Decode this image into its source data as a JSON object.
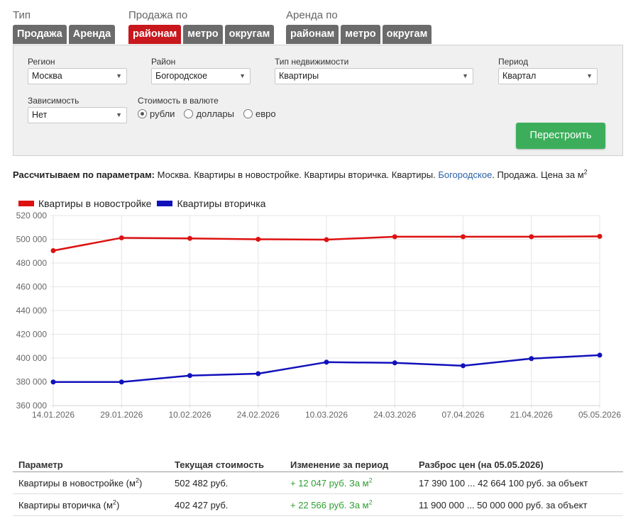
{
  "tabs": {
    "type_label": "Тип",
    "type_items": [
      "Продажа",
      "Аренда"
    ],
    "sale_label": "Продажа по",
    "sale_items": [
      "районам",
      "метро",
      "округам"
    ],
    "rent_label": "Аренда по",
    "rent_items": [
      "районам",
      "метро",
      "округам"
    ]
  },
  "filters": {
    "region_label": "Регион",
    "region_value": "Москва",
    "district_label": "Район",
    "district_value": "Богородское",
    "property_label": "Тип недвижимости",
    "property_value": "Квартиры",
    "period_label": "Период",
    "period_value": "Квартал",
    "dependency_label": "Зависимость",
    "dependency_value": "Нет",
    "currency_label": "Стоимость в валюте",
    "currency_options": [
      "рубли",
      "доллары",
      "евро"
    ],
    "currency_selected": "рубли",
    "rebuild_label": "Перестроить"
  },
  "params": {
    "prefix": "Рассчитываем по параметрам:",
    "text_before": " Москва. Квартиры в новостройке. Квартиры вторичка. Квартиры. ",
    "link": "Богородское",
    "text_after": ". Продажа. Цена за м",
    "sup": "2"
  },
  "chart_data": {
    "type": "line",
    "x": [
      "14.01.2026",
      "29.01.2026",
      "10.02.2026",
      "24.02.2026",
      "10.03.2026",
      "24.03.2026",
      "07.04.2026",
      "21.04.2026",
      "05.05.2026"
    ],
    "series": [
      {
        "name": "Квартиры в новостройке",
        "color": "#dd1111",
        "values": [
          490435,
          501231,
          500781,
          500032,
          499682,
          502182,
          502182,
          502182,
          502482
        ]
      },
      {
        "name": "Квартиры вторичка",
        "color": "#1111bb",
        "values": [
          379861,
          379861,
          385253,
          386851,
          396536,
          395937,
          393540,
          399531,
          402427
        ]
      }
    ],
    "ylim": [
      360000,
      520000
    ],
    "yticks": [
      "520 000",
      "500 000",
      "480 000",
      "460 000",
      "440 000",
      "420 000",
      "400 000",
      "380 000",
      "360 000"
    ],
    "grid": true,
    "legend": "top-left"
  },
  "table": {
    "headers": [
      "Параметр",
      "Текущая стоимость",
      "Изменение за период",
      "Разброс цен (на 05.05.2026)"
    ],
    "rows": [
      {
        "param": "Квартиры в новостройке (м",
        "sup": "2",
        "param_end": ")",
        "current": "502 482 руб.",
        "change": "+ 12 047 руб. За м",
        "change_sup": "2",
        "spread": "17 390 100 ... 42 664 100 руб. за объект"
      },
      {
        "param": "Квартиры вторичка (м",
        "sup": "2",
        "param_end": ")",
        "current": "402 427 руб.",
        "change": "+ 22 566 руб. За м",
        "change_sup": "2",
        "spread": "11 900 000 ... 50 000 000 руб. за объект"
      }
    ]
  }
}
